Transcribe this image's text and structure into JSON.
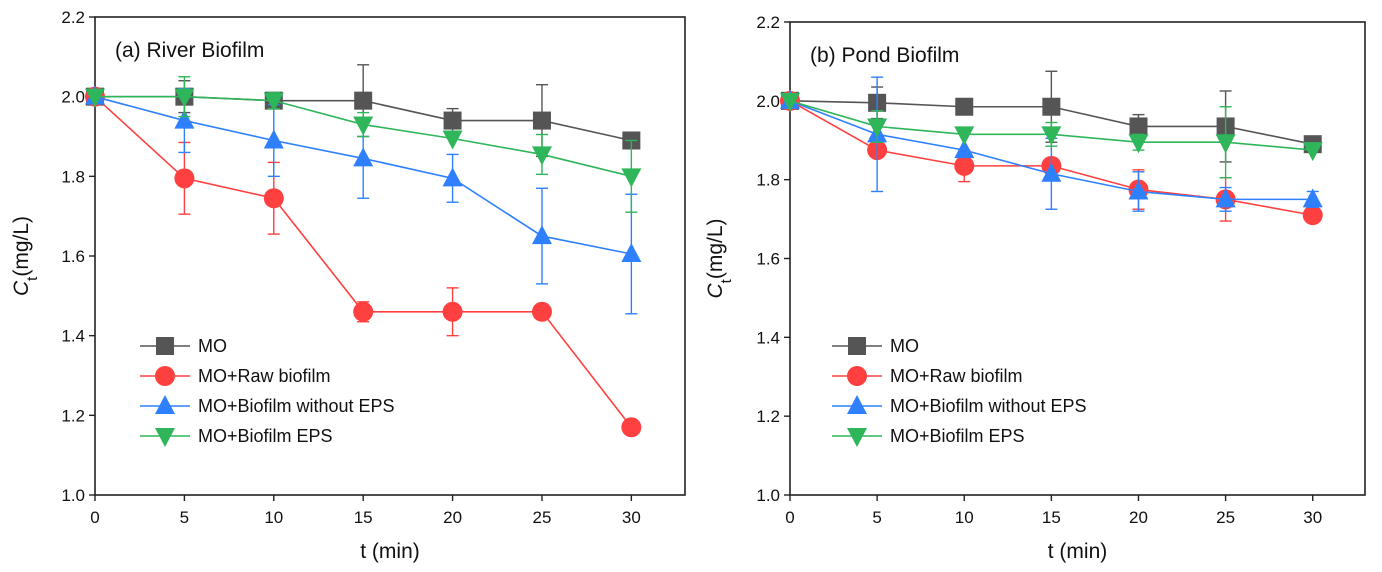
{
  "chart_data": [
    {
      "type": "line",
      "title": "(a) River Biofilm",
      "xlabel": "t (min)",
      "ylabel_main": "C",
      "ylabel_sub": "t",
      "ylabel_rest": "(mg/L)",
      "xlim": [
        0,
        33
      ],
      "ylim": [
        1.0,
        2.2
      ],
      "x": [
        0,
        5,
        10,
        15,
        20,
        25,
        30
      ],
      "xticks": [
        "0",
        "5",
        "10",
        "15",
        "20",
        "25",
        "30"
      ],
      "yticks": [
        "1.0",
        "1.2",
        "1.4",
        "1.6",
        "1.8",
        "2.0",
        "2.2"
      ],
      "legend_position": "lower-left",
      "series": [
        {
          "name": "MO",
          "color": "#555555",
          "marker": "square",
          "values": [
            2.0,
            2.0,
            1.99,
            1.99,
            1.94,
            1.94,
            1.89
          ],
          "errors": [
            0.0,
            0.04,
            0.02,
            0.09,
            0.03,
            0.09,
            0.0
          ]
        },
        {
          "name": "MO+Raw biofilm",
          "color": "#ff4040",
          "marker": "circle",
          "values": [
            2.0,
            1.795,
            1.745,
            1.46,
            1.46,
            1.46,
            1.17
          ],
          "errors": [
            0.0,
            0.09,
            0.09,
            0.025,
            0.06,
            0.0,
            0.0
          ]
        },
        {
          "name": "MO+Biofilm without EPS",
          "color": "#2f80ff",
          "marker": "triangle-up",
          "values": [
            2.0,
            1.94,
            1.89,
            1.845,
            1.795,
            1.65,
            1.605
          ],
          "errors": [
            0.0,
            0.08,
            0.09,
            0.1,
            0.06,
            0.12,
            0.15
          ]
        },
        {
          "name": "MO+Biofilm EPS",
          "color": "#2fb55a",
          "marker": "triangle-down",
          "values": [
            2.0,
            2.0,
            1.99,
            1.93,
            1.895,
            1.855,
            1.8
          ],
          "errors": [
            0.0,
            0.05,
            0.02,
            0.03,
            0.0,
            0.05,
            0.09
          ]
        }
      ]
    },
    {
      "type": "line",
      "title": "(b) Pond Biofilm",
      "xlabel": "t (min)",
      "ylabel_main": "C",
      "ylabel_sub": "t",
      "ylabel_rest": "(mg/L)",
      "xlim": [
        0,
        33
      ],
      "ylim": [
        1.0,
        2.2
      ],
      "x": [
        0,
        5,
        10,
        15,
        20,
        25,
        30
      ],
      "xticks": [
        "0",
        "5",
        "10",
        "15",
        "20",
        "25",
        "30"
      ],
      "yticks": [
        "1.0",
        "1.2",
        "1.4",
        "1.6",
        "1.8",
        "2.0",
        "2.2"
      ],
      "legend_position": "lower-left",
      "series": [
        {
          "name": "MO",
          "color": "#555555",
          "marker": "square",
          "values": [
            2.0,
            1.995,
            1.985,
            1.985,
            1.935,
            1.935,
            1.89
          ],
          "errors": [
            0.0,
            0.04,
            0.02,
            0.09,
            0.03,
            0.09,
            0.0
          ]
        },
        {
          "name": "MO+Raw biofilm",
          "color": "#ff4040",
          "marker": "circle",
          "values": [
            2.0,
            1.875,
            1.835,
            1.835,
            1.775,
            1.75,
            1.71
          ],
          "errors": [
            0.0,
            0.0,
            0.04,
            0.0,
            0.05,
            0.055,
            0.0
          ]
        },
        {
          "name": "MO+Biofilm without EPS",
          "color": "#2f80ff",
          "marker": "triangle-up",
          "values": [
            2.0,
            1.915,
            1.875,
            1.815,
            1.77,
            1.75,
            1.75
          ],
          "errors": [
            0.0,
            0.145,
            0.0,
            0.09,
            0.05,
            0.03,
            0.02
          ]
        },
        {
          "name": "MO+Biofilm EPS",
          "color": "#2fb55a",
          "marker": "triangle-down",
          "values": [
            2.0,
            1.935,
            1.915,
            1.915,
            1.895,
            1.895,
            1.875
          ],
          "errors": [
            0.0,
            0.04,
            0.0,
            0.03,
            0.02,
            0.09,
            0.0
          ]
        }
      ]
    }
  ]
}
